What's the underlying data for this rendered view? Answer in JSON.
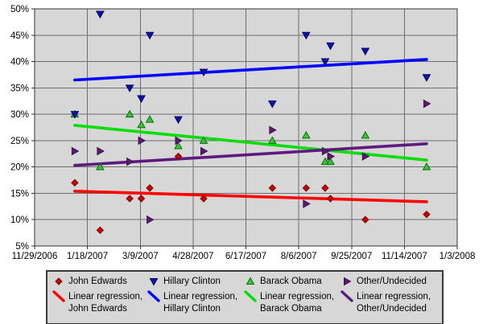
{
  "chart_data": {
    "type": "scatter",
    "title": "",
    "grid": true,
    "legend_position": "bottom",
    "plot_bg": "#d7d7d7",
    "grid_color": "#6e6e6e",
    "border_color": "#333333",
    "x_axis": {
      "tick_labels": [
        "11/29/2006",
        "1/18/2007",
        "3/9/2007",
        "4/28/2007",
        "6/17/2007",
        "8/6/2007",
        "9/25/2007",
        "11/14/2007",
        "1/3/2008"
      ],
      "tick_days": [
        0,
        50,
        100,
        150,
        200,
        250,
        300,
        350,
        400
      ],
      "range_days": [
        0,
        400
      ]
    },
    "y_axis": {
      "tick_labels": [
        "5%",
        "10%",
        "15%",
        "20%",
        "25%",
        "30%",
        "35%",
        "40%",
        "45%",
        "50%"
      ],
      "tick_values": [
        5,
        10,
        15,
        20,
        25,
        30,
        35,
        40,
        45,
        50
      ],
      "range": [
        5,
        50
      ],
      "unit": "%"
    },
    "series": [
      {
        "name": "John Edwards",
        "marker": "diamond",
        "marker_color": "#cc0000",
        "marker_stroke": "#7a0000",
        "points": [
          [
            38,
            17
          ],
          [
            62,
            8
          ],
          [
            90,
            14
          ],
          [
            101,
            14
          ],
          [
            109,
            16
          ],
          [
            136,
            22
          ],
          [
            160,
            14
          ],
          [
            225,
            16
          ],
          [
            257,
            16
          ],
          [
            275,
            16
          ],
          [
            280,
            14
          ],
          [
            313,
            10
          ],
          [
            371,
            11
          ]
        ]
      },
      {
        "name": "Hillary Clinton",
        "marker": "triangle-down",
        "marker_color": "#1111aa",
        "marker_stroke": "#000066",
        "points": [
          [
            38,
            30
          ],
          [
            62,
            49
          ],
          [
            90,
            35
          ],
          [
            101,
            33
          ],
          [
            109,
            45
          ],
          [
            136,
            29
          ],
          [
            160,
            38
          ],
          [
            225,
            32
          ],
          [
            257,
            45
          ],
          [
            275,
            40
          ],
          [
            280,
            43
          ],
          [
            313,
            42
          ],
          [
            371,
            37
          ]
        ]
      },
      {
        "name": "Barack Obama",
        "marker": "triangle-up",
        "marker_color": "#44bb44",
        "marker_stroke": "#007700",
        "points": [
          [
            38,
            30
          ],
          [
            62,
            20
          ],
          [
            90,
            30
          ],
          [
            101,
            28
          ],
          [
            109,
            29
          ],
          [
            136,
            24
          ],
          [
            160,
            25
          ],
          [
            225,
            25
          ],
          [
            257,
            26
          ],
          [
            275,
            21
          ],
          [
            280,
            21
          ],
          [
            313,
            26
          ],
          [
            371,
            20
          ]
        ]
      },
      {
        "name": "Other/Undecided",
        "marker": "triangle-right",
        "marker_color": "#5b1a6e",
        "marker_stroke": "#3f1050",
        "points": [
          [
            38,
            23
          ],
          [
            62,
            23
          ],
          [
            90,
            21
          ],
          [
            101,
            25
          ],
          [
            109,
            10
          ],
          [
            136,
            25
          ],
          [
            160,
            23
          ],
          [
            225,
            27
          ],
          [
            257,
            13
          ],
          [
            275,
            23
          ],
          [
            280,
            22
          ],
          [
            313,
            22
          ],
          [
            371,
            32
          ]
        ]
      }
    ],
    "regressions": [
      {
        "name": "Linear regression, John Edwards",
        "color": "#ff0000",
        "x_days": [
          38,
          371
        ],
        "values": [
          15.4,
          13.4
        ]
      },
      {
        "name": "Linear regression, Hillary Clinton",
        "color": "#0000ff",
        "x_days": [
          38,
          371
        ],
        "values": [
          36.5,
          40.4
        ]
      },
      {
        "name": "Linear regression, Barack Obama",
        "color": "#00dd00",
        "x_days": [
          38,
          371
        ],
        "values": [
          27.9,
          21.3
        ]
      },
      {
        "name": "Linear regression, Other/Undecided",
        "color": "#5e1a7e",
        "x_days": [
          38,
          371
        ],
        "values": [
          20.3,
          24.4
        ]
      }
    ]
  },
  "legend": {
    "regression_prefix": "Linear regression,",
    "entries": [
      {
        "name": "John Edwards",
        "marker": "diamond",
        "marker_color": "#cc0000",
        "marker_stroke": "#7a0000",
        "line_color": "#ff0000"
      },
      {
        "name": "Hillary Clinton",
        "marker": "triangle-down",
        "marker_color": "#1111aa",
        "marker_stroke": "#000066",
        "line_color": "#0000ff"
      },
      {
        "name": "Barack Obama",
        "marker": "triangle-up",
        "marker_color": "#44bb44",
        "marker_stroke": "#007700",
        "line_color": "#00dd00"
      },
      {
        "name": "Other/Undecided",
        "marker": "triangle-right",
        "marker_color": "#5b1a6e",
        "marker_stroke": "#3f1050",
        "line_color": "#5e1a7e"
      }
    ]
  }
}
